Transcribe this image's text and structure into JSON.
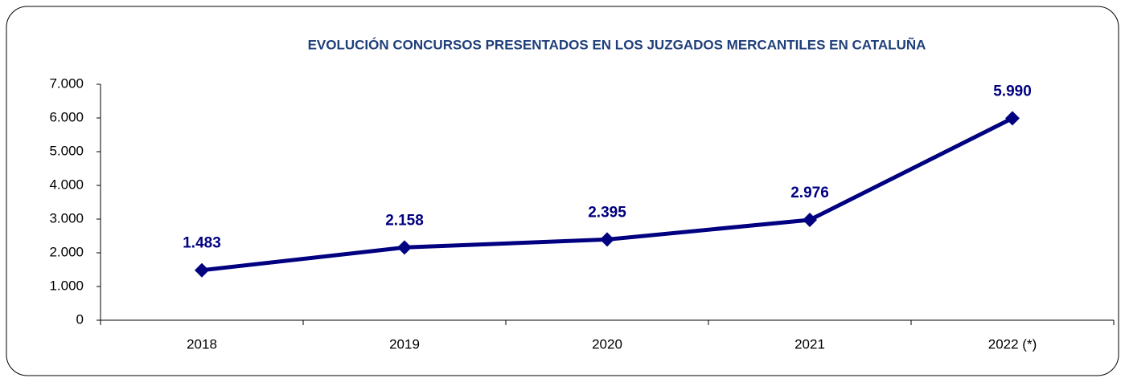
{
  "chart_data": {
    "type": "line",
    "title": "EVOLUCIÓN CONCURSOS PRESENTADOS EN LOS JUZGADOS MERCANTILES EN CATALUÑA",
    "categories": [
      "2018",
      "2019",
      "2020",
      "2021",
      "2022 (*)"
    ],
    "values": [
      1483,
      2158,
      2395,
      2976,
      5990
    ],
    "value_labels": [
      "1.483",
      "2.158",
      "2.395",
      "2.976",
      "5.990"
    ],
    "color": "#000080",
    "ylim": [
      0,
      7000
    ],
    "yticks": [
      0,
      {
        "value": 1000,
        "label": "1.000"
      },
      {
        "value": 2000,
        "label": "2.000"
      },
      {
        "value": 3000,
        "label": "3.000"
      },
      {
        "value": 4000,
        "label": "4.000"
      },
      {
        "value": 5000,
        "label": "5.000"
      },
      {
        "value": 6000,
        "label": "6.000"
      },
      {
        "value": 7000,
        "label": "7.000"
      }
    ],
    "grid": false
  }
}
